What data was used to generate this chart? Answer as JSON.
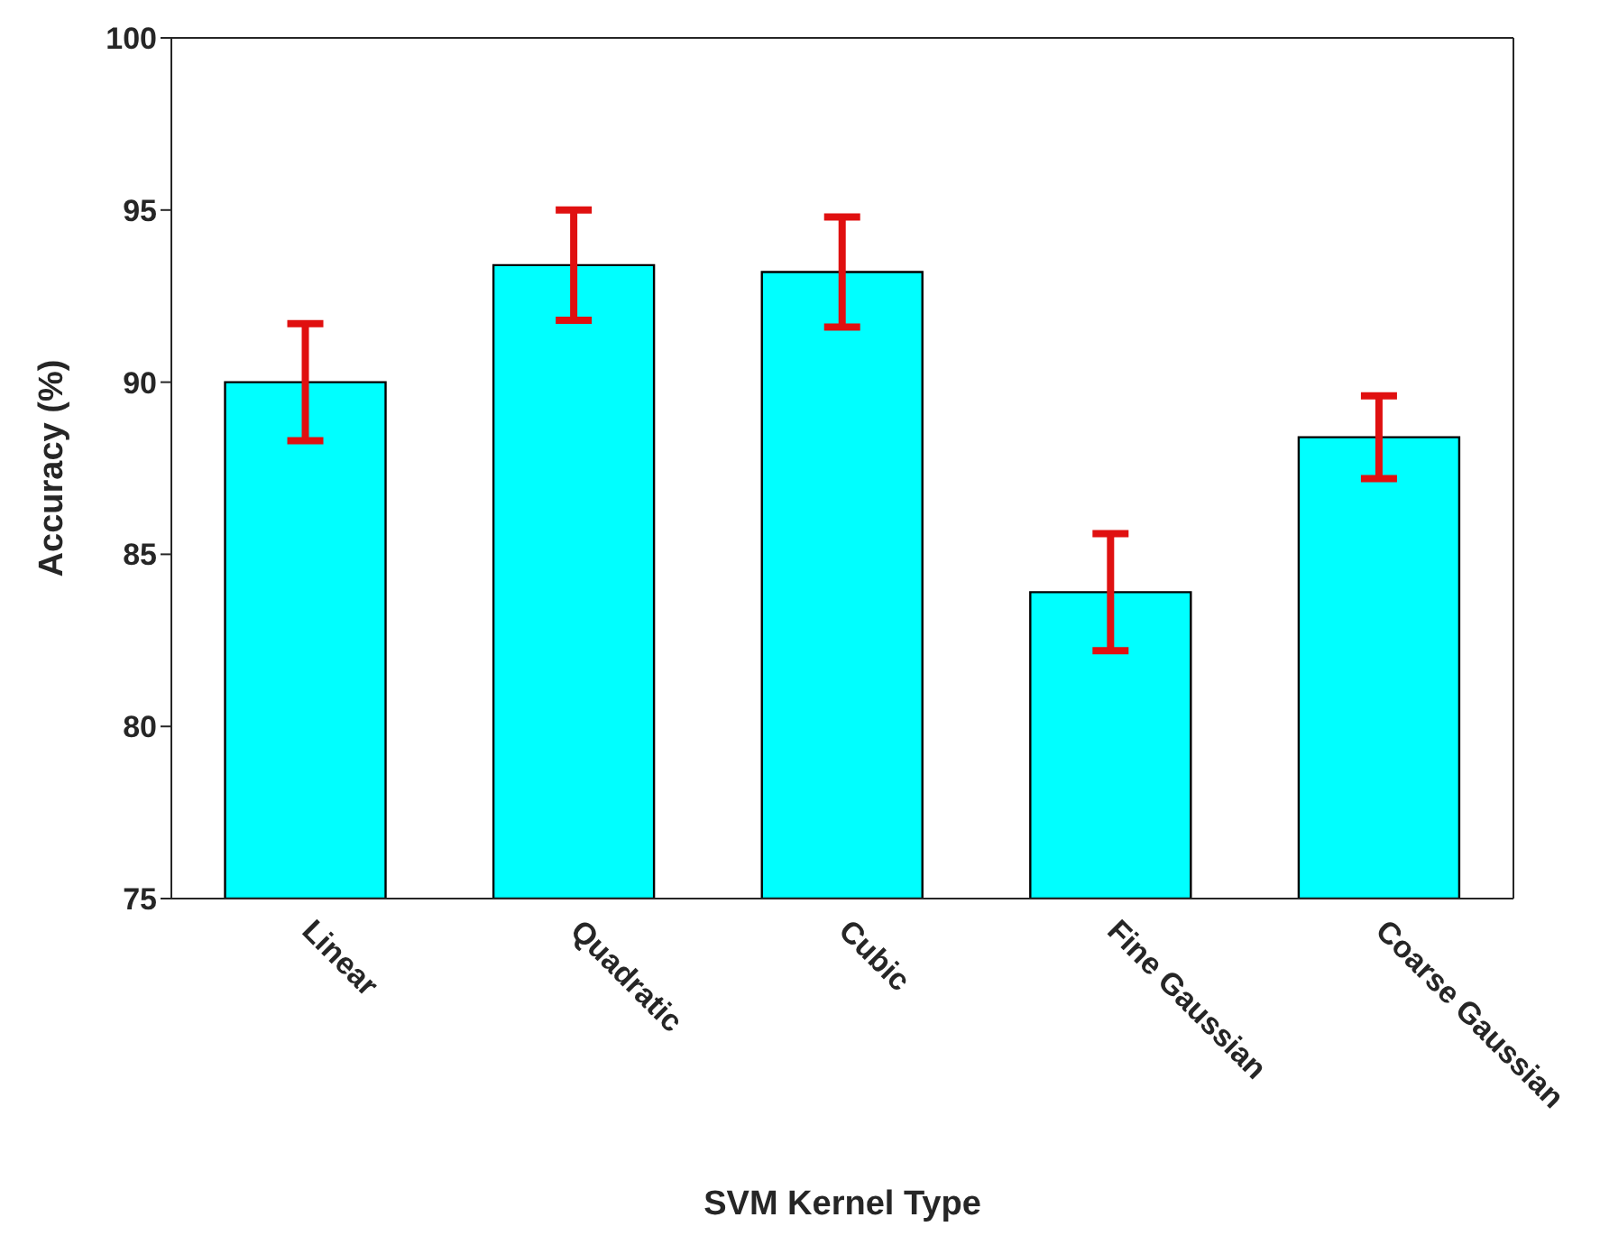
{
  "chart_data": {
    "type": "bar",
    "xlabel": "SVM Kernel Type",
    "ylabel": "Accuracy (%)",
    "categories": [
      "Linear",
      "Quadratic",
      "Cubic",
      "Fine Gaussian",
      "Coarse Gaussian"
    ],
    "values": [
      90.0,
      93.4,
      93.2,
      83.9,
      88.4
    ],
    "errors": [
      1.7,
      1.6,
      1.6,
      1.7,
      1.2
    ],
    "color": "#00ffff",
    "ylim": [
      75,
      100
    ],
    "yticks": [
      75,
      80,
      85,
      90,
      95,
      100
    ]
  }
}
